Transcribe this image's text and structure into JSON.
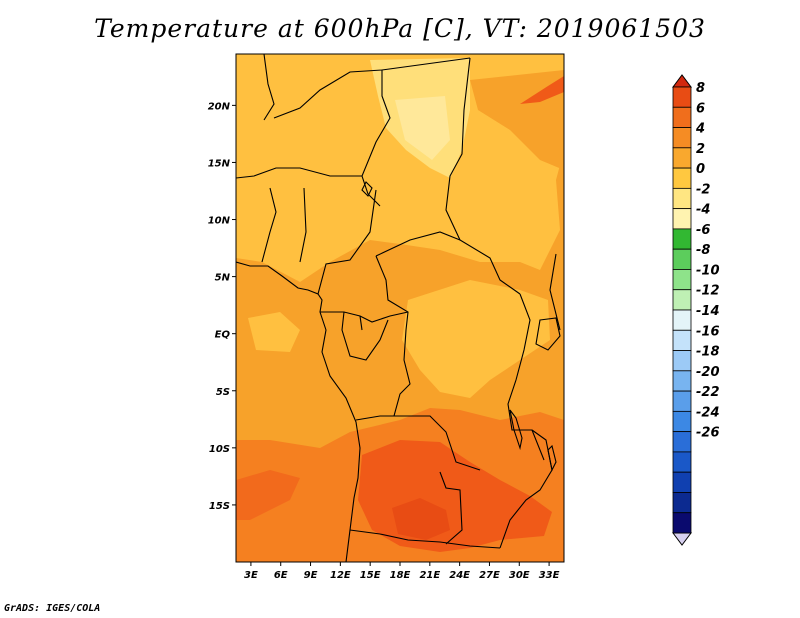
{
  "title": "Temperature at 600hPa [C], VT: 2019061503",
  "footer": "GrADS: IGES/COLA",
  "colors": {
    "light_orange": "#ffc040",
    "mid_orange": "#f7a22a",
    "dark_orange": "#f58020",
    "red_orange": "#f05a18",
    "pale_yellow": "#ffdf7a"
  },
  "chart_data": {
    "type": "heatmap",
    "title": "Temperature at 600hPa [C], VT: 2019061503",
    "variable_unit": "C",
    "valid_time": "2019061503",
    "x_axis": {
      "range": [
        1.5,
        34.5
      ],
      "ticks": [
        {
          "value": 3,
          "label": "3E"
        },
        {
          "value": 6,
          "label": "6E"
        },
        {
          "value": 9,
          "label": "9E"
        },
        {
          "value": 12,
          "label": "12E"
        },
        {
          "value": 15,
          "label": "15E"
        },
        {
          "value": 18,
          "label": "18E"
        },
        {
          "value": 21,
          "label": "21E"
        },
        {
          "value": 24,
          "label": "24E"
        },
        {
          "value": 27,
          "label": "27E"
        },
        {
          "value": 30,
          "label": "30E"
        },
        {
          "value": 33,
          "label": "33E"
        }
      ]
    },
    "y_axis": {
      "range": [
        -20,
        24.5
      ],
      "ticks": [
        {
          "value": 20,
          "label": "20N"
        },
        {
          "value": 15,
          "label": "15N"
        },
        {
          "value": 10,
          "label": "10N"
        },
        {
          "value": 5,
          "label": "5N"
        },
        {
          "value": 0,
          "label": "EQ"
        },
        {
          "value": -5,
          "label": "5S"
        },
        {
          "value": -10,
          "label": "10S"
        },
        {
          "value": -15,
          "label": "15S"
        }
      ]
    },
    "colorbar": {
      "labels": [
        "8",
        "6",
        "4",
        "2",
        "0",
        "-2",
        "-4",
        "-6",
        "-8",
        "-10",
        "-12",
        "-14",
        "-16",
        "-18",
        "-20",
        "-22",
        "-24",
        "-26"
      ],
      "colors": [
        "#d7d0f0",
        "#0a0a6e",
        "#0c2a90",
        "#1040b0",
        "#1a58c8",
        "#2a6ed8",
        "#3c88e4",
        "#5a9eea",
        "#78b4f0",
        "#9ccaf6",
        "#c4e2fa",
        "#e4f4f8",
        "#bff0b4",
        "#8ee38a",
        "#5ccd5c",
        "#32b832",
        "#fff3b0",
        "#ffe682",
        "#ffc840",
        "#f9a82e",
        "#f58c24",
        "#f06e1c",
        "#e84c14",
        "#d2280e"
      ]
    },
    "grid": false,
    "legend_position": "right"
  }
}
